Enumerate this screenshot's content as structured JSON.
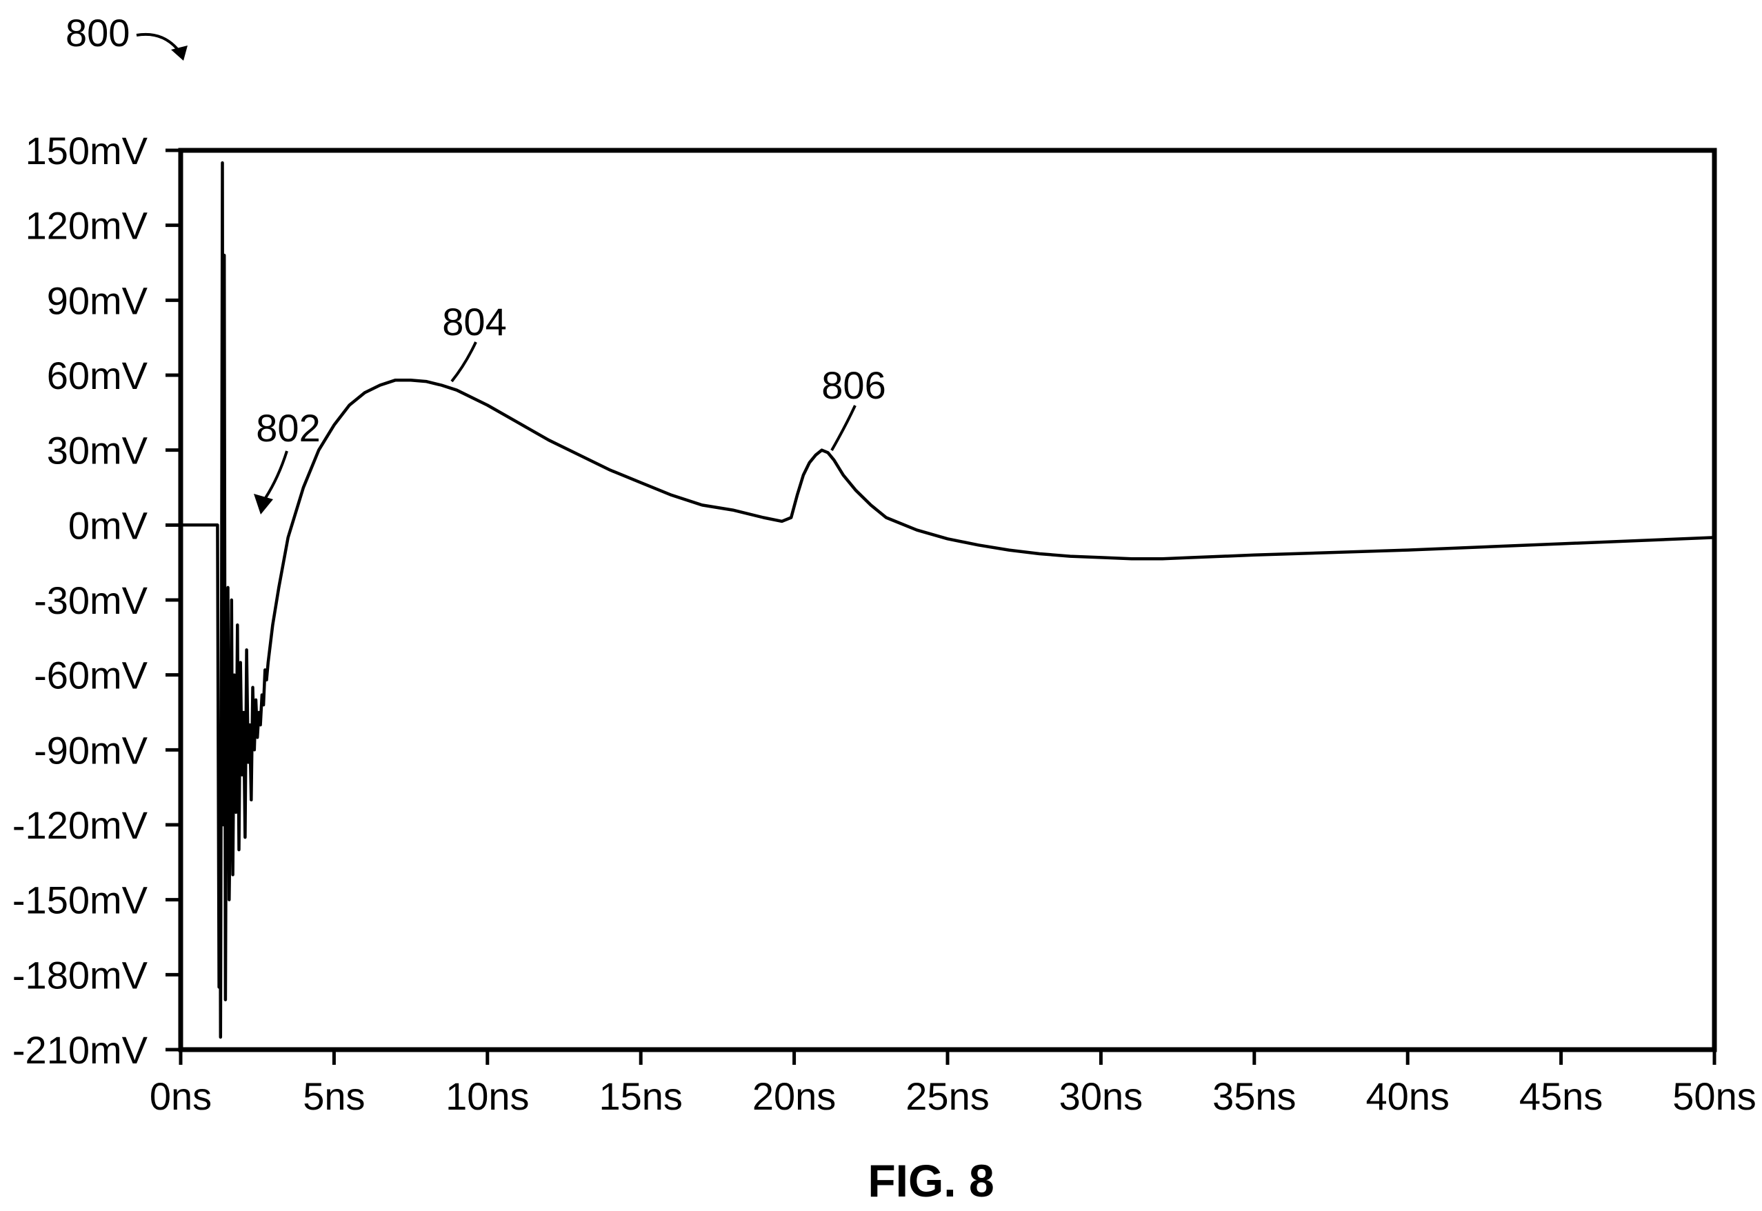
{
  "figure_ref": "800",
  "caption": "FIG. 8",
  "chart_data": {
    "type": "line",
    "title": "",
    "xlabel": "",
    "ylabel": "",
    "x_unit": "ns",
    "y_unit": "mV",
    "xlim": [
      0,
      50
    ],
    "ylim": [
      -210,
      150
    ],
    "x_ticks": [
      "0ns",
      "5ns",
      "10ns",
      "15ns",
      "20ns",
      "25ns",
      "30ns",
      "35ns",
      "40ns",
      "45ns",
      "50ns"
    ],
    "y_ticks": [
      "150mV",
      "120mV",
      "90mV",
      "60mV",
      "30mV",
      "0mV",
      "-30mV",
      "-60mV",
      "-90mV",
      "-120mV",
      "-150mV",
      "-180mV",
      "-210mV"
    ],
    "grid": false,
    "legend": "none",
    "series": [
      {
        "x": [
          0,
          1.2,
          1.25,
          1.28,
          1.3,
          1.33,
          1.36,
          1.39,
          1.42,
          1.46,
          1.5,
          1.54,
          1.58,
          1.62,
          1.66,
          1.7,
          1.75,
          1.8,
          1.85,
          1.9,
          1.95,
          2.0,
          2.05,
          2.1,
          2.15,
          2.2,
          2.25,
          2.3,
          2.35,
          2.4,
          2.45,
          2.5,
          2.55,
          2.6,
          2.65,
          2.7,
          2.75,
          2.8,
          2.85,
          2.9,
          2.95,
          3.0,
          3.2,
          3.5,
          4.0,
          4.5,
          5.0,
          5.5,
          6.0,
          6.5,
          7.0,
          7.5,
          8.0,
          8.5,
          9.0,
          10.0,
          11.0,
          12.0,
          13.0,
          14.0,
          15.0,
          16.0,
          17.0,
          18.0,
          19.0,
          19.6,
          19.9,
          20.1,
          20.3,
          20.5,
          20.7,
          20.9,
          21.1,
          21.3,
          21.6,
          22.0,
          22.5,
          23.0,
          24.0,
          25.0,
          26.0,
          27.0,
          28.0,
          29.0,
          30.0,
          31.0,
          32.0,
          33.0,
          35.0,
          40.0,
          45.0,
          50.0
        ],
        "y": [
          0,
          0,
          -185,
          -90,
          -205,
          -40,
          145,
          -120,
          108,
          -190,
          -60,
          -25,
          -150,
          -110,
          -30,
          -140,
          -60,
          -115,
          -40,
          -130,
          -55,
          -100,
          -75,
          -125,
          -50,
          -95,
          -80,
          -110,
          -65,
          -90,
          -70,
          -85,
          -75,
          -80,
          -68,
          -72,
          -58,
          -62,
          -55,
          -50,
          -45,
          -40,
          -25,
          -5,
          15,
          30,
          40,
          48,
          53,
          56,
          58,
          58,
          57.5,
          56,
          54,
          48,
          41,
          34,
          28,
          22,
          17,
          12,
          8,
          6,
          3,
          1.5,
          3,
          12,
          20,
          25,
          28,
          30,
          29,
          26,
          20,
          14,
          8,
          3,
          -2,
          -5.5,
          -8,
          -10,
          -11.5,
          -12.5,
          -13,
          -13.5,
          -13.5,
          -13,
          -12,
          -10,
          -7.5,
          -5
        ]
      }
    ],
    "annotations": [
      {
        "label": "802",
        "x": 2.7,
        "y": -36
      },
      {
        "label": "804",
        "x": 8.2,
        "y": 57.5
      },
      {
        "label": "806",
        "x": 21.2,
        "y": 29
      }
    ]
  }
}
